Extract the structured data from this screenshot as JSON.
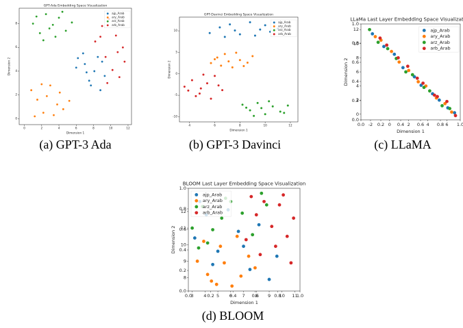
{
  "chart_data": [
    {
      "type": "scatter",
      "title": "GPT-Ada Embedding Space Visualization",
      "caption": "(a) GPT-3 Ada",
      "x_label": "Dimension 1",
      "y_label": "Dimension 2",
      "legend": "upper right",
      "xlim": [
        -0.6,
        12.4
      ],
      "ylim": [
        -0.5,
        9.3
      ],
      "xticks": [
        0,
        2,
        4,
        6,
        8,
        10,
        12
      ],
      "yticks": [
        0,
        2,
        4,
        6,
        8
      ],
      "series": [
        {
          "name": "ajp_Arab",
          "color": "#1f77b4",
          "x": [
            6.2,
            7.0,
            7.5,
            8.1,
            6.8,
            8.8,
            9.3,
            7.7,
            8.5,
            6.0,
            7.2,
            9.0
          ],
          "values": [
            5.1,
            4.6,
            3.2,
            4.0,
            5.5,
            2.4,
            3.6,
            2.8,
            5.2,
            4.3,
            3.9,
            4.8
          ]
        },
        {
          "name": "ary_Arab",
          "color": "#ff7f0e",
          "x": [
            0.8,
            1.5,
            2.2,
            3.0,
            3.8,
            4.5,
            5.2,
            2.6,
            1.2,
            3.4,
            4.1,
            2.0
          ],
          "values": [
            2.4,
            1.6,
            0.5,
            2.8,
            1.2,
            0.8,
            1.5,
            1.9,
            0.2,
            0.3,
            2.2,
            2.9
          ]
        },
        {
          "name": "arz_Arab",
          "color": "#2ca02c",
          "x": [
            1.0,
            1.8,
            2.5,
            3.3,
            4.0,
            4.8,
            5.5,
            2.2,
            3.6,
            1.4,
            4.4,
            2.9
          ],
          "values": [
            8.0,
            7.2,
            8.8,
            7.9,
            8.5,
            7.4,
            8.1,
            6.6,
            6.9,
            8.6,
            9.0,
            7.6
          ]
        },
        {
          "name": "arb_Arab",
          "color": "#d62728",
          "x": [
            8.2,
            9.0,
            9.8,
            10.6,
            11.4,
            9.4,
            10.2,
            11.0,
            8.8,
            10.8,
            9.6,
            11.6
          ],
          "values": [
            6.5,
            7.8,
            8.4,
            7.0,
            6.0,
            5.2,
            4.1,
            3.5,
            6.9,
            5.6,
            3.0,
            4.8
          ]
        }
      ]
    },
    {
      "type": "scatter",
      "title": "GPT-Davinci Embedding Space Visualization",
      "caption": "(b) GPT-3 Davinci",
      "x_label": "Dimension 1",
      "y_label": "Dimension 2",
      "legend": "upper right",
      "xlim": [
        3.2,
        12.6
      ],
      "ylim": [
        -11.2,
        13.2
      ],
      "xticks": [
        4,
        6,
        8,
        10,
        12
      ],
      "yticks": [
        -10,
        -5,
        0,
        5,
        10
      ],
      "series": [
        {
          "name": "ajp_Arab",
          "color": "#1f77b4",
          "x": [
            5.6,
            6.4,
            7.2,
            8.0,
            8.8,
            9.6,
            10.4,
            11.0,
            6.8,
            9.2,
            7.6,
            10.0
          ],
          "values": [
            9.5,
            10.8,
            11.5,
            9.2,
            12.0,
            10.3,
            9.8,
            10.5,
            8.6,
            8.9,
            10.1,
            11.3
          ]
        },
        {
          "name": "ary_Arab",
          "color": "#ff7f0e",
          "x": [
            5.7,
            6.2,
            6.8,
            7.4,
            8.0,
            8.6,
            9.0,
            6.5,
            7.7,
            7.1,
            8.3,
            6.0
          ],
          "values": [
            2.5,
            3.8,
            4.6,
            1.5,
            3.2,
            2.6,
            4.1,
            1.9,
            4.9,
            2.9,
            1.8,
            3.4
          ]
        },
        {
          "name": "arz_Arab",
          "color": "#2ca02c",
          "x": [
            8.2,
            8.8,
            9.4,
            10.0,
            10.6,
            11.2,
            11.8,
            9.1,
            10.3,
            11.5,
            9.7,
            8.5
          ],
          "values": [
            -7.2,
            -8.5,
            -6.8,
            -9.4,
            -7.6,
            -8.8,
            -7.4,
            -9.8,
            -6.4,
            -9.1,
            -8.0,
            -7.9
          ]
        },
        {
          "name": "arb_Arab",
          "color": "#d62728",
          "x": [
            3.6,
            4.2,
            4.8,
            5.4,
            6.0,
            6.6,
            4.5,
            5.1,
            5.7,
            3.9,
            6.3,
            4.9
          ],
          "values": [
            -3.0,
            -1.5,
            -4.6,
            -2.2,
            -0.5,
            -3.8,
            -5.2,
            -0.2,
            -5.8,
            -3.9,
            -2.7,
            -3.4
          ]
        }
      ]
    },
    {
      "type": "scatter",
      "title": "LLaMa Last Layer Embedding Space Visualization",
      "caption": "(c) LLaMA",
      "x_label": "Dimension 1",
      "y_label": "Dimension 2",
      "legend": "upper right",
      "xlim": [
        -3.0,
        7.4
      ],
      "ylim": [
        -0.8,
        12.8
      ],
      "xticks": [
        -2,
        0,
        2,
        4,
        6
      ],
      "yticks": [
        0,
        2,
        4,
        6,
        8,
        10,
        12
      ],
      "x2lim": [
        0,
        1
      ],
      "y2lim": [
        0,
        1
      ],
      "x2ticks": [
        {
          "value": 0,
          "label": "0.0"
        },
        0.2,
        0.4,
        0.6,
        0.8,
        {
          "value": 1,
          "label": "1.0"
        }
      ],
      "y2ticks": [
        {
          "value": 0,
          "label": "0.0"
        },
        0.2,
        0.4,
        0.6,
        0.8,
        {
          "value": 1,
          "label": "1.0"
        }
      ],
      "series": [
        {
          "name": "ajp_Arab",
          "color": "#1f77b4",
          "x": [
            -1.8,
            -0.6,
            0.5,
            1.4,
            2.6,
            3.3,
            4.5,
            5.2,
            6.1,
            6.8
          ],
          "values": [
            11.4,
            9.6,
            8.5,
            6.6,
            5.3,
            4.1,
            2.9,
            2.0,
            0.9,
            0.2
          ]
        },
        {
          "name": "ary_Arab",
          "color": "#ff7f0e",
          "x": [
            -1.5,
            -0.9,
            0.2,
            1.0,
            2.0,
            3.0,
            3.8,
            4.9,
            5.8,
            6.5
          ],
          "values": [
            11.0,
            10.5,
            8.9,
            7.4,
            6.2,
            4.6,
            4.0,
            2.3,
            1.5,
            0.3
          ]
        },
        {
          "name": "arz_Arab",
          "color": "#2ca02c",
          "x": [
            -2.1,
            -1.2,
            -0.2,
            0.7,
            1.7,
            2.4,
            3.6,
            4.2,
            5.5,
            6.3
          ],
          "values": [
            12.0,
            10.2,
            9.3,
            7.9,
            6.0,
            5.6,
            3.8,
            3.3,
            1.2,
            0.8
          ]
        },
        {
          "name": "arb_Arab",
          "color": "#d62728",
          "x": [
            -1.0,
            -0.3,
            0.9,
            1.9,
            2.9,
            3.5,
            4.7,
            5.0,
            6.0,
            6.9
          ],
          "values": [
            10.8,
            9.8,
            8.0,
            6.8,
            5.1,
            4.4,
            2.7,
            2.5,
            1.8,
            -0.2
          ]
        }
      ]
    },
    {
      "type": "scatter",
      "title": "BLOOM Last Layer Embedding Space Visualization",
      "caption": "(d) BLOOM",
      "x_label": "Dimension 1",
      "y_label": "Dimension 2",
      "legend": "upper left",
      "xlim": [
        2.7,
        11.4
      ],
      "ylim": [
        7.2,
        13.4
      ],
      "xticks": [
        3,
        4,
        5,
        6,
        7,
        8,
        9,
        10,
        11
      ],
      "yticks": [
        8,
        9,
        10,
        11,
        12
      ],
      "x2lim": [
        0,
        1
      ],
      "y2lim": [
        0,
        1
      ],
      "x2ticks": [
        {
          "value": 0,
          "label": "0.0"
        },
        0.2,
        0.4,
        0.6,
        0.8,
        {
          "value": 1,
          "label": "1.0"
        }
      ],
      "y2ticks": [
        {
          "value": 0,
          "label": "0.0"
        },
        0.2,
        0.4,
        0.6,
        0.8,
        {
          "value": 1,
          "label": "1.0"
        }
      ],
      "series": [
        {
          "name": "ajp_Arab",
          "color": "#1f77b4",
          "x": [
            3.2,
            4.1,
            5.0,
            5.8,
            6.6,
            7.5,
            8.2,
            9.0,
            4.6,
            7.0,
            3.6,
            9.6
          ],
          "values": [
            10.4,
            11.8,
            9.6,
            12.1,
            10.8,
            8.5,
            11.2,
            7.9,
            8.8,
            9.9,
            12.6,
            9.3
          ]
        },
        {
          "name": "ary_Arab",
          "color": "#ff7f0e",
          "x": [
            3.4,
            4.2,
            4.9,
            5.5,
            6.1,
            6.8,
            7.4,
            3.9,
            5.2,
            6.5,
            4.5,
            7.9
          ],
          "values": [
            9.0,
            8.2,
            7.6,
            8.9,
            7.5,
            8.1,
            9.3,
            10.2,
            9.9,
            10.5,
            7.8,
            8.6
          ]
        },
        {
          "name": "arz_Arab",
          "color": "#2ca02c",
          "x": [
            3.0,
            3.8,
            4.6,
            5.3,
            6.0,
            6.9,
            7.7,
            8.4,
            4.2,
            5.6,
            8.8,
            3.5
          ],
          "values": [
            11.0,
            12.3,
            10.9,
            11.6,
            12.6,
            11.9,
            10.6,
            13.1,
            10.1,
            12.8,
            12.4,
            9.8
          ]
        },
        {
          "name": "arb_Arab",
          "color": "#d62728",
          "x": [
            7.2,
            8.0,
            8.6,
            9.2,
            9.8,
            10.4,
            10.9,
            8.3,
            9.5,
            10.1,
            7.6,
            10.7
          ],
          "values": [
            10.3,
            11.8,
            12.6,
            11.1,
            12.4,
            10.5,
            11.6,
            9.4,
            9.9,
            13.0,
            12.9,
            8.9
          ]
        }
      ]
    }
  ]
}
